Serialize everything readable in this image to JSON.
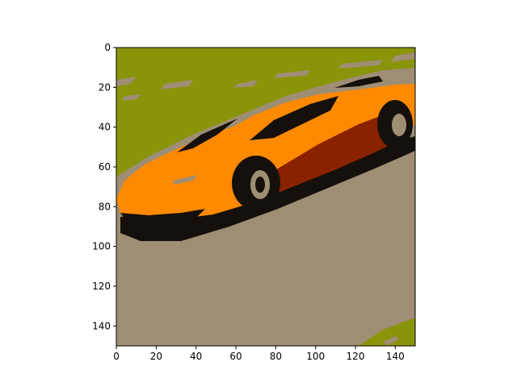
{
  "chart_data": {
    "type": "heatmap",
    "title": "",
    "xlabel": "",
    "ylabel": "",
    "xlim": [
      0,
      150
    ],
    "ylim": [
      150,
      0
    ],
    "x_ticks": [
      0,
      20,
      40,
      60,
      80,
      100,
      120,
      140
    ],
    "y_ticks": [
      0,
      20,
      40,
      60,
      80,
      100,
      120,
      140
    ],
    "x_tick_labels": [
      "0",
      "20",
      "40",
      "60",
      "80",
      "100",
      "120",
      "140"
    ],
    "y_tick_labels": [
      "0",
      "20",
      "40",
      "60",
      "80",
      "100",
      "120",
      "140"
    ],
    "grid": false,
    "image_description_colors": {
      "olive_background": "#8a9408",
      "road_taupe": "#9e8e74",
      "car_orange": "#ff8a00",
      "car_dark_red": "#8a2200",
      "shadow_black": "#16100c"
    }
  }
}
